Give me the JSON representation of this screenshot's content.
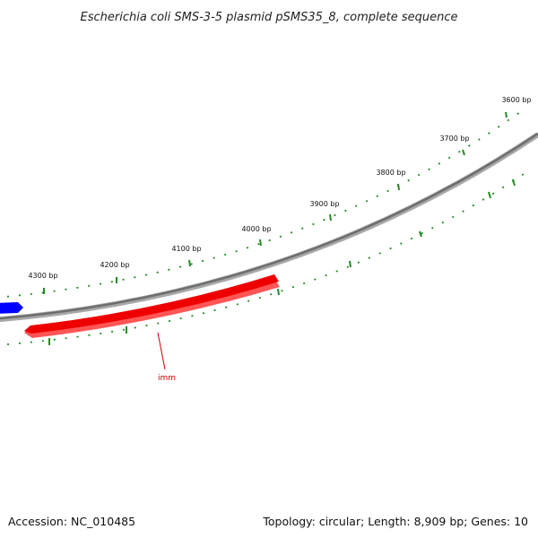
{
  "title": "Escherichia coli SMS-3-5 plasmid pSMS35_8, complete sequence",
  "accession": "Accession: NC_010485",
  "summary": "Topology: circular; Length: 8,909 bp; Genes: 10",
  "colors": {
    "backbone": "#7a7a7a",
    "ticks": "#228b22",
    "gene_forward": "#ff0000",
    "gene_reverse": "#0000ff",
    "gene_label": "#cc0000"
  },
  "ticks": [
    {
      "label": "3600 bp"
    },
    {
      "label": "3700 bp"
    },
    {
      "label": "3800 bp"
    },
    {
      "label": "3900 bp"
    },
    {
      "label": "4000 bp"
    },
    {
      "label": "4100 bp"
    },
    {
      "label": "4200 bp"
    },
    {
      "label": "4300 bp"
    }
  ],
  "genes": [
    {
      "label": "imm",
      "strand": "forward"
    },
    {
      "label": "",
      "strand": "reverse"
    }
  ]
}
